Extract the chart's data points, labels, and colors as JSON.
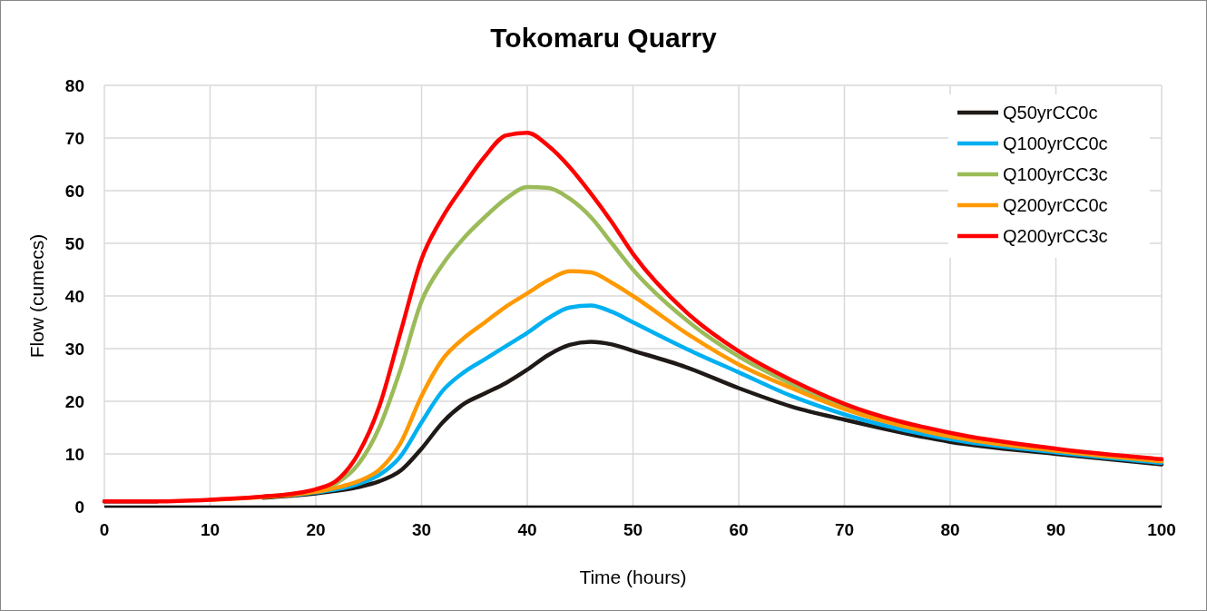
{
  "chart_data": {
    "type": "line",
    "title": "Tokomaru Quarry",
    "xlabel": "Time (hours)",
    "ylabel": "Flow (cumecs)",
    "x": [
      0,
      5,
      10,
      15,
      18,
      20,
      22,
      24,
      26,
      28,
      30,
      32,
      34,
      36,
      38,
      40,
      42,
      44,
      46,
      48,
      50,
      55,
      60,
      65,
      70,
      80,
      90,
      100
    ],
    "xlim": [
      0,
      100
    ],
    "xticks": [
      0,
      10,
      20,
      30,
      40,
      50,
      60,
      70,
      80,
      90,
      100
    ],
    "ylim": [
      0,
      80
    ],
    "yticks": [
      0,
      10,
      20,
      30,
      40,
      50,
      60,
      70,
      80
    ],
    "grid": true,
    "legend": "top right",
    "line_style": "solid",
    "series": [
      {
        "name": "Q50yrCC0c",
        "color": "#1f1a17",
        "values": [
          1,
          1,
          null,
          1.7,
          2.1,
          2.5,
          3,
          3.7,
          4.8,
          6.8,
          11,
          16,
          19.5,
          21.5,
          23.5,
          26,
          28.8,
          30.7,
          31.3,
          30.8,
          29.6,
          26.5,
          22.5,
          19,
          16.5,
          12.3,
          10,
          8
        ]
      },
      {
        "name": "Q100yrCC0c",
        "color": "#00b0f0",
        "values": [
          null,
          null,
          null,
          null,
          2.2,
          2.7,
          3.3,
          4.3,
          6,
          9.5,
          16,
          22,
          25.5,
          28,
          30.5,
          33,
          35.8,
          37.8,
          38.2,
          37,
          35,
          30,
          25.5,
          21,
          17.5,
          12.8,
          10.3,
          8.3
        ]
      },
      {
        "name": "Q100yrCC3c",
        "color": "#9bbb59",
        "values": [
          null,
          null,
          null,
          1.9,
          2.4,
          3,
          4.5,
          8,
          15,
          26,
          39,
          46,
          51,
          55,
          58.5,
          60.7,
          60.5,
          58.5,
          55,
          50,
          45,
          35.5,
          28.5,
          23.3,
          19,
          13.7,
          10.9,
          8.8
        ]
      },
      {
        "name": "Q200yrCC0c",
        "color": "#ff9900",
        "values": [
          null,
          null,
          1.3,
          1.8,
          2.3,
          2.8,
          3.6,
          4.8,
          7,
          12,
          21,
          28,
          32,
          35,
          38,
          40.5,
          43,
          44.7,
          44.5,
          42.5,
          40,
          33,
          27,
          22.5,
          18.5,
          13.3,
          10.6,
          8.6
        ]
      },
      {
        "name": "Q200yrCC3c",
        "color": "#ff0000",
        "values": [
          1,
          1,
          1.3,
          1.9,
          2.5,
          3.3,
          5,
          10,
          19,
          33,
          47,
          55,
          61,
          66.5,
          70.5,
          71,
          68.5,
          64.5,
          59.5,
          54,
          48,
          37,
          29.5,
          24,
          19.5,
          14,
          11,
          9
        ]
      }
    ]
  }
}
